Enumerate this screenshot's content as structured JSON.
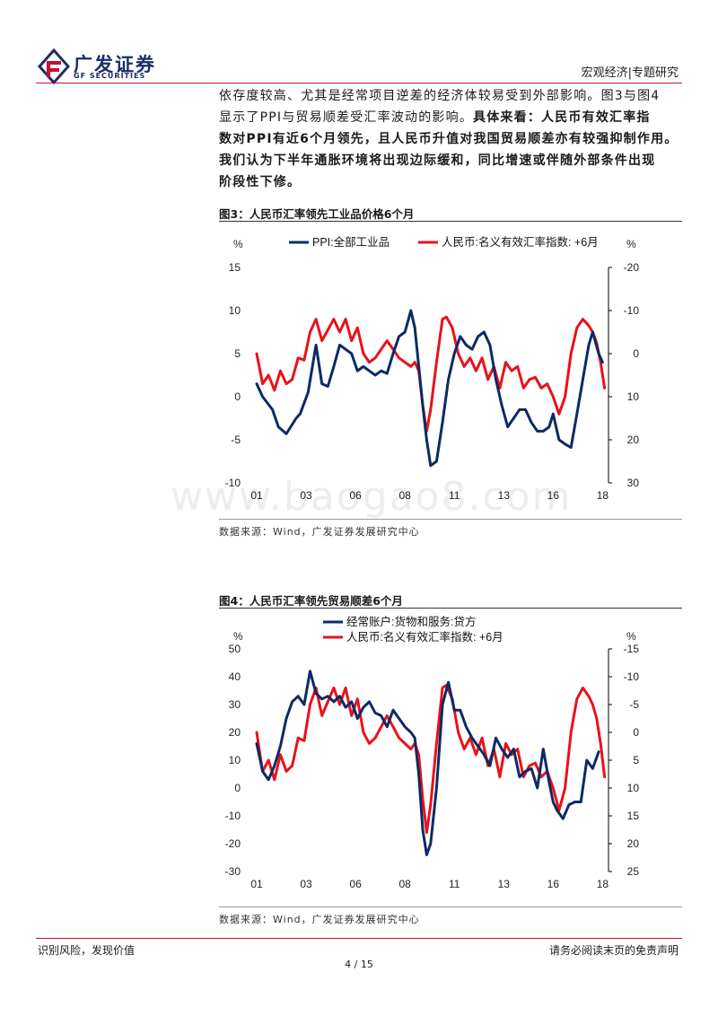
{
  "header": {
    "logo_cn": "广发证券",
    "logo_en": "GF SECURITIES",
    "section": "宏观经济|专题研究"
  },
  "body": {
    "line1": "依存度较高、尤其是经常项目逆差的经济体较易受到外部影响。图3与图4",
    "line2_plain": "显示了PPI与贸易顺差受汇率波动的影响。",
    "line2_bold": "具体来看：人民币有效汇率指",
    "line3": "数对PPI有近6个月领先，且人民币升值对我国贸易顺差亦有较强抑制作用。",
    "line4": "我们认为下半年通胀环境将出现边际缓和，同比增速或伴随外部条件出现",
    "line5": "阶段性下修。"
  },
  "watermark": "www.baogao8.com",
  "colors": {
    "navy": "#0d2a64",
    "red": "#e8121b",
    "brand_red": "#c8102e"
  },
  "chart_data": [
    {
      "type": "line",
      "title": "图3：人民币汇率领先工业品价格6个月",
      "source": "数据来源：Wind，广发证券发展研究中心",
      "left_unit": "%",
      "right_unit": "%",
      "x_ticks": [
        "01",
        "03",
        "06",
        "08",
        "11",
        "13",
        "16",
        "18"
      ],
      "x_tick_years": [
        2001,
        2003.5,
        2006,
        2008.5,
        2011,
        2013.5,
        2016,
        2018.5
      ],
      "x_range": [
        2001,
        2018.8
      ],
      "ylim_left": [
        -10,
        15
      ],
      "left_ticks": [
        "15",
        "10",
        "5",
        "0",
        "-5",
        "-10"
      ],
      "ylim_right_top_to_bottom": [
        -20,
        30
      ],
      "right_ticks": [
        "-20",
        "-10",
        "0",
        "10",
        "20",
        "30"
      ],
      "grid": false,
      "legend": "top",
      "series": [
        {
          "name": "PPI:全部工业品",
          "axis": "left",
          "color": "#0d2a64",
          "x": [
            2001,
            2001.3,
            2001.8,
            2002.1,
            2002.5,
            2003,
            2003.2,
            2003.6,
            2004,
            2004.3,
            2004.6,
            2004.9,
            2005.2,
            2005.5,
            2005.8,
            2006.1,
            2006.4,
            2006.7,
            2007,
            2007.3,
            2007.6,
            2007.9,
            2008.2,
            2008.5,
            2008.8,
            2009,
            2009.2,
            2009.4,
            2009.6,
            2009.8,
            2010.1,
            2010.4,
            2010.7,
            2011,
            2011.3,
            2011.6,
            2011.9,
            2012.2,
            2012.5,
            2012.8,
            2013.1,
            2013.4,
            2013.7,
            2014,
            2014.3,
            2014.6,
            2014.9,
            2015.2,
            2015.5,
            2015.8,
            2016,
            2016.3,
            2016.6,
            2016.9,
            2017.2,
            2017.5,
            2017.8,
            2018,
            2018.3,
            2018.5
          ],
          "y": [
            1.5,
            0,
            -1.5,
            -3.5,
            -4.3,
            -2.5,
            -2,
            0.5,
            6,
            1.5,
            1.2,
            3.5,
            6,
            5.5,
            5,
            3,
            3.5,
            3,
            2.5,
            3,
            2.7,
            5,
            7,
            7.5,
            10,
            8,
            3.5,
            -1,
            -5,
            -8,
            -7.5,
            -3,
            2,
            5,
            7,
            6,
            5.5,
            7,
            7.5,
            6,
            2,
            -1,
            -3.5,
            -2.5,
            -1.5,
            -1.5,
            -3,
            -4,
            -4,
            -3.5,
            -2,
            -5,
            -5.5,
            -5.9,
            -2,
            2,
            6,
            7.5,
            5,
            4
          ]
        },
        {
          "name": "人民币:名义有效汇率指数: +6月",
          "axis": "right",
          "color": "#e8121b",
          "x": [
            2001,
            2001.3,
            2001.6,
            2001.9,
            2002.2,
            2002.5,
            2002.8,
            2003.1,
            2003.4,
            2003.7,
            2004,
            2004.3,
            2004.6,
            2004.9,
            2005.2,
            2005.5,
            2005.8,
            2006.1,
            2006.4,
            2006.7,
            2007,
            2007.3,
            2007.6,
            2007.9,
            2008.2,
            2008.5,
            2008.8,
            2009,
            2009.2,
            2009.4,
            2009.6,
            2009.8,
            2010.1,
            2010.4,
            2010.6,
            2010.9,
            2011.2,
            2011.5,
            2011.8,
            2012.1,
            2012.4,
            2012.7,
            2013,
            2013.3,
            2013.6,
            2013.9,
            2014.2,
            2014.5,
            2014.8,
            2015.1,
            2015.4,
            2015.7,
            2016,
            2016.3,
            2016.6,
            2016.9,
            2017.2,
            2017.5,
            2017.8,
            2018,
            2018.2,
            2018.4,
            2018.6
          ],
          "y": [
            0,
            7,
            5,
            8.5,
            4,
            7,
            6,
            1,
            1.5,
            -5,
            -8,
            -3,
            -5.5,
            -8,
            -5,
            -8,
            -3,
            -6,
            0,
            2,
            1,
            -1,
            -3,
            -1,
            1,
            2,
            3,
            2,
            4,
            12,
            18,
            13,
            2,
            -8,
            -8.5,
            -6,
            0,
            3,
            1,
            4,
            1,
            6,
            3,
            8,
            2,
            4,
            3,
            8,
            6,
            5.5,
            8,
            7,
            10,
            14,
            10,
            0,
            -6,
            -8,
            -6.5,
            -5,
            -2.5,
            2,
            8
          ]
        }
      ]
    },
    {
      "type": "line",
      "title": "图4：人民币汇率领先贸易顺差6个月",
      "source": "数据来源：Wind，广发证券发展研究中心",
      "left_unit": "%",
      "right_unit": "%",
      "x_ticks": [
        "01",
        "03",
        "06",
        "08",
        "11",
        "13",
        "16",
        "18"
      ],
      "x_tick_years": [
        2001,
        2003.5,
        2006,
        2008.5,
        2011,
        2013.5,
        2016,
        2018.5
      ],
      "x_range": [
        2001,
        2018.8
      ],
      "ylim_left": [
        -30,
        50
      ],
      "left_ticks": [
        "50",
        "40",
        "30",
        "20",
        "10",
        "0",
        "-10",
        "-20",
        "-30"
      ],
      "ylim_right_top_to_bottom": [
        -15,
        25
      ],
      "right_ticks": [
        "-15",
        "-10",
        "-5",
        "0",
        "5",
        "10",
        "15",
        "20",
        "25"
      ],
      "grid": false,
      "legend": "top",
      "series": [
        {
          "name": "经常账户:货物和服务:贷方",
          "axis": "left",
          "color": "#0d2a64",
          "x": [
            2001,
            2001.3,
            2001.6,
            2001.9,
            2002.2,
            2002.5,
            2002.8,
            2003.1,
            2003.4,
            2003.7,
            2004,
            2004.3,
            2004.6,
            2004.9,
            2005.2,
            2005.5,
            2005.8,
            2006.1,
            2006.4,
            2006.7,
            2007,
            2007.3,
            2007.6,
            2007.9,
            2008.2,
            2008.5,
            2008.8,
            2009,
            2009.2,
            2009.4,
            2009.6,
            2009.8,
            2010.1,
            2010.4,
            2010.7,
            2011,
            2011.3,
            2011.6,
            2011.9,
            2012.2,
            2012.5,
            2012.8,
            2013.1,
            2013.4,
            2013.7,
            2014,
            2014.3,
            2014.6,
            2014.9,
            2015.2,
            2015.5,
            2015.8,
            2016,
            2016.2,
            2016.5,
            2016.8,
            2017.1,
            2017.4,
            2017.7,
            2018,
            2018.3
          ],
          "y": [
            16,
            6,
            3,
            8,
            15,
            25,
            31,
            33,
            30,
            42,
            34,
            32,
            33,
            31,
            33,
            29,
            31,
            25,
            29,
            31,
            27,
            26,
            22,
            28,
            25,
            22,
            20,
            18,
            5,
            -15,
            -24,
            -20,
            0,
            30,
            38,
            28,
            28,
            22,
            18,
            15,
            12,
            8,
            18,
            14,
            11,
            14,
            4,
            6,
            7,
            0,
            14,
            2,
            -5,
            -8,
            -11,
            -6,
            -5,
            -5,
            10,
            7,
            13
          ]
        },
        {
          "name": "人民币:名义有效汇率指数: +6月",
          "axis": "right",
          "color": "#e8121b",
          "x": [
            2001,
            2001.3,
            2001.6,
            2001.9,
            2002.2,
            2002.5,
            2002.8,
            2003.1,
            2003.4,
            2003.7,
            2004,
            2004.3,
            2004.6,
            2004.9,
            2005.2,
            2005.5,
            2005.8,
            2006.1,
            2006.4,
            2006.7,
            2007,
            2007.3,
            2007.6,
            2007.9,
            2008.2,
            2008.5,
            2008.8,
            2009,
            2009.2,
            2009.4,
            2009.6,
            2009.8,
            2010.1,
            2010.4,
            2010.6,
            2010.9,
            2011.2,
            2011.5,
            2011.8,
            2012.1,
            2012.4,
            2012.7,
            2013,
            2013.3,
            2013.6,
            2013.9,
            2014.2,
            2014.5,
            2014.8,
            2015.1,
            2015.4,
            2015.7,
            2016,
            2016.3,
            2016.6,
            2016.9,
            2017.2,
            2017.5,
            2017.8,
            2018,
            2018.2,
            2018.4,
            2018.6
          ],
          "y": [
            0,
            7,
            5,
            8.5,
            4,
            7,
            6,
            1,
            1.5,
            -5,
            -8,
            -3,
            -5.5,
            -8,
            -5,
            -8,
            -3,
            -6,
            0,
            2,
            1,
            -1,
            -3,
            -1,
            1,
            2,
            3,
            2,
            4,
            12,
            18,
            13,
            2,
            -8,
            -8.5,
            -6,
            0,
            3,
            1,
            4,
            1,
            6,
            3,
            8,
            2,
            4,
            3,
            8,
            6,
            5.5,
            8,
            7,
            10,
            14,
            10,
            0,
            -6,
            -8,
            -6.5,
            -5,
            -2.5,
            2,
            8
          ]
        }
      ]
    }
  ],
  "footer": {
    "left": "识别风险，发现价值",
    "right": "请务必阅读末页的免责声明",
    "page": "4 / 15"
  }
}
